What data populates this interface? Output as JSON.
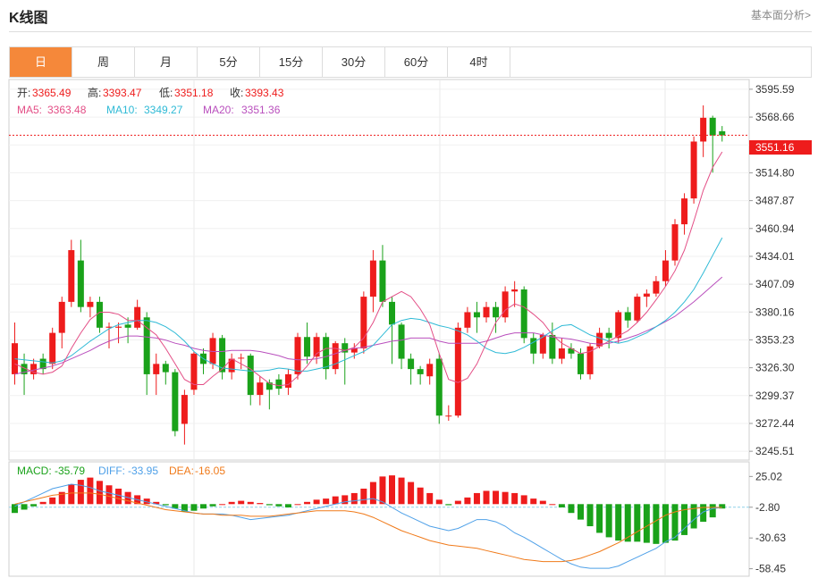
{
  "header": {
    "title": "K线图",
    "link": "基本面分析>"
  },
  "tabs": [
    "日",
    "周",
    "月",
    "5分",
    "15分",
    "30分",
    "60分",
    "4时"
  ],
  "active_tab": 0,
  "colors": {
    "up": "#ee1c1c",
    "down": "#1aa21a",
    "ma5": "#e34e86",
    "ma10": "#2fbad6",
    "ma20": "#b94fbd",
    "diff": "#4ea0e8",
    "dea": "#f07a1a",
    "accent": "#f5883a"
  },
  "info": {
    "open_label": "开:",
    "open": "3365.49",
    "high_label": "高:",
    "high": "3393.47",
    "low_label": "低:",
    "low": "3351.18",
    "close_label": "收:",
    "close": "3393.43",
    "ma5_label": "MA5:",
    "ma5": "3363.48",
    "ma10_label": "MA10:",
    "ma10": "3349.27",
    "ma20_label": "MA20:",
    "ma20": "3351.36"
  },
  "macd_info": {
    "macd_label": "MACD:",
    "macd": "-35.79",
    "diff_label": "DIFF:",
    "diff": "-33.95",
    "dea_label": "DEA:",
    "dea": "-16.05"
  },
  "chart_data": {
    "type": "candlestick",
    "price_axis": {
      "ticks": [
        "3595.59",
        "3568.66",
        "3541.73",
        "3514.80",
        "3487.87",
        "3460.94",
        "3434.01",
        "3407.09",
        "3380.16",
        "3353.23",
        "3326.30",
        "3299.37",
        "3272.44",
        "3245.51"
      ],
      "range": [
        3237,
        3605
      ]
    },
    "current_price": "3551.16",
    "candles": [
      [
        3320,
        3350,
        3310,
        3370
      ],
      [
        3330,
        3320,
        3300,
        3340
      ],
      [
        3320,
        3330,
        3315,
        3335
      ],
      [
        3335,
        3325,
        3320,
        3340
      ],
      [
        3330,
        3360,
        3325,
        3365
      ],
      [
        3360,
        3390,
        3345,
        3395
      ],
      [
        3390,
        3440,
        3385,
        3450
      ],
      [
        3430,
        3385,
        3380,
        3450
      ],
      [
        3385,
        3390,
        3375,
        3395
      ],
      [
        3390,
        3365,
        3360,
        3395
      ],
      [
        3365,
        3366,
        3345,
        3370
      ],
      [
        3365,
        3366,
        3350,
        3370
      ],
      [
        3368,
        3365,
        3350,
        3375
      ],
      [
        3365,
        3385,
        3363,
        3392
      ],
      [
        3375,
        3320,
        3300,
        3380
      ],
      [
        3320,
        3330,
        3300,
        3340
      ],
      [
        3330,
        3322,
        3310,
        3333
      ],
      [
        3322,
        3265,
        3260,
        3325
      ],
      [
        3272,
        3300,
        3252,
        3305
      ],
      [
        3305,
        3340,
        3300,
        3342
      ],
      [
        3340,
        3330,
        3320,
        3345
      ],
      [
        3330,
        3355,
        3325,
        3360
      ],
      [
        3355,
        3322,
        3315,
        3358
      ],
      [
        3322,
        3335,
        3315,
        3340
      ],
      [
        3336,
        3336,
        3325,
        3340
      ],
      [
        3338,
        3300,
        3290,
        3340
      ],
      [
        3300,
        3312,
        3290,
        3318
      ],
      [
        3312,
        3305,
        3286,
        3315
      ],
      [
        3315,
        3306,
        3300,
        3320
      ],
      [
        3307,
        3320,
        3300,
        3325
      ],
      [
        3320,
        3356,
        3315,
        3360
      ],
      [
        3356,
        3337,
        3330,
        3370
      ],
      [
        3337,
        3356,
        3330,
        3360
      ],
      [
        3356,
        3325,
        3315,
        3360
      ],
      [
        3325,
        3350,
        3320,
        3352
      ],
      [
        3350,
        3341,
        3310,
        3355
      ],
      [
        3341,
        3345,
        3335,
        3350
      ],
      [
        3345,
        3395,
        3340,
        3400
      ],
      [
        3395,
        3430,
        3380,
        3440
      ],
      [
        3430,
        3390,
        3385,
        3445
      ],
      [
        3390,
        3368,
        3330,
        3395
      ],
      [
        3368,
        3335,
        3325,
        3370
      ],
      [
        3335,
        3325,
        3310,
        3340
      ],
      [
        3325,
        3320,
        3310,
        3328
      ],
      [
        3318,
        3330,
        3310,
        3335
      ],
      [
        3335,
        3280,
        3272,
        3340
      ],
      [
        3280,
        3280,
        3275,
        3290
      ],
      [
        3280,
        3365,
        3278,
        3370
      ],
      [
        3365,
        3380,
        3360,
        3385
      ],
      [
        3380,
        3375,
        3360,
        3390
      ],
      [
        3375,
        3385,
        3370,
        3390
      ],
      [
        3385,
        3375,
        3360,
        3390
      ],
      [
        3375,
        3400,
        3370,
        3405
      ],
      [
        3400,
        3402,
        3385,
        3410
      ],
      [
        3402,
        3355,
        3350,
        3405
      ],
      [
        3355,
        3340,
        3330,
        3360
      ],
      [
        3340,
        3358,
        3335,
        3360
      ],
      [
        3358,
        3335,
        3330,
        3370
      ],
      [
        3335,
        3345,
        3330,
        3355
      ],
      [
        3345,
        3340,
        3335,
        3350
      ],
      [
        3340,
        3320,
        3315,
        3345
      ],
      [
        3320,
        3347,
        3315,
        3350
      ],
      [
        3347,
        3360,
        3345,
        3365
      ],
      [
        3360,
        3355,
        3345,
        3365
      ],
      [
        3355,
        3380,
        3350,
        3382
      ],
      [
        3380,
        3372,
        3365,
        3385
      ],
      [
        3372,
        3395,
        3370,
        3398
      ],
      [
        3395,
        3398,
        3385,
        3402
      ],
      [
        3398,
        3410,
        3395,
        3415
      ],
      [
        3410,
        3430,
        3405,
        3440
      ],
      [
        3430,
        3465,
        3425,
        3470
      ],
      [
        3465,
        3490,
        3455,
        3495
      ],
      [
        3490,
        3545,
        3485,
        3550
      ],
      [
        3545,
        3568,
        3530,
        3580
      ],
      [
        3568,
        3551,
        3515,
        3570
      ],
      [
        3555,
        3551,
        3545,
        3560
      ]
    ],
    "ma5": [
      3330,
      3326,
      3322,
      3320,
      3322,
      3328,
      3345,
      3360,
      3373,
      3380,
      3380,
      3378,
      3372,
      3372,
      3365,
      3358,
      3345,
      3330,
      3315,
      3310,
      3310,
      3318,
      3325,
      3335,
      3330,
      3325,
      3318,
      3311,
      3309,
      3310,
      3318,
      3328,
      3340,
      3345,
      3345,
      3343,
      3346,
      3355,
      3370,
      3390,
      3395,
      3400,
      3395,
      3383,
      3368,
      3340,
      3315,
      3312,
      3316,
      3330,
      3350,
      3370,
      3382,
      3388,
      3385,
      3378,
      3370,
      3358,
      3350,
      3345,
      3340,
      3342,
      3347,
      3352,
      3357,
      3362,
      3370,
      3380,
      3392,
      3405,
      3420,
      3440,
      3468,
      3498,
      3520,
      3535
    ],
    "ma10": [
      3335,
      3334,
      3333,
      3332,
      3331,
      3333,
      3338,
      3345,
      3352,
      3358,
      3364,
      3368,
      3370,
      3372,
      3372,
      3370,
      3366,
      3360,
      3352,
      3342,
      3335,
      3330,
      3326,
      3325,
      3324,
      3323,
      3323,
      3324,
      3326,
      3325,
      3323,
      3323,
      3325,
      3327,
      3330,
      3334,
      3338,
      3342,
      3348,
      3358,
      3368,
      3372,
      3374,
      3373,
      3370,
      3367,
      3365,
      3362,
      3358,
      3352,
      3345,
      3341,
      3340,
      3342,
      3346,
      3351,
      3356,
      3362,
      3367,
      3368,
      3363,
      3358,
      3355,
      3352,
      3350,
      3352,
      3356,
      3360,
      3366,
      3372,
      3380,
      3390,
      3402,
      3418,
      3435,
      3452
    ],
    "ma20": [
      3320,
      3322,
      3324,
      3326,
      3328,
      3331,
      3335,
      3339,
      3343,
      3348,
      3352,
      3355,
      3357,
      3357,
      3356,
      3355,
      3353,
      3350,
      3348,
      3345,
      3343,
      3342,
      3342,
      3343,
      3343,
      3343,
      3342,
      3340,
      3338,
      3335,
      3334,
      3334,
      3335,
      3337,
      3340,
      3343,
      3345,
      3346,
      3348,
      3350,
      3352,
      3353,
      3355,
      3355,
      3355,
      3352,
      3350,
      3350,
      3350,
      3350,
      3352,
      3355,
      3358,
      3360,
      3360,
      3360,
      3358,
      3356,
      3355,
      3354,
      3352,
      3350,
      3349,
      3350,
      3352,
      3355,
      3358,
      3362,
      3366,
      3371,
      3376,
      3383,
      3390,
      3398,
      3406,
      3414
    ],
    "macd_axis": {
      "ticks": [
        "25.02",
        "-2.80",
        "-30.63",
        "-58.45"
      ],
      "range": [
        -62,
        35
      ]
    },
    "macd": [
      -8,
      -5,
      -2,
      2,
      6,
      11,
      18,
      22,
      24,
      21,
      17,
      14,
      11,
      8,
      5,
      2,
      -1,
      -4,
      -7,
      -6,
      -4,
      -2,
      0,
      2,
      3,
      2,
      1,
      -1,
      -2,
      -3,
      0,
      2,
      4,
      5,
      7,
      8,
      10,
      14,
      20,
      25,
      26,
      24,
      20,
      15,
      10,
      4,
      -1,
      3,
      6,
      10,
      12,
      12,
      11,
      10,
      8,
      5,
      3,
      0,
      -3,
      -8,
      -14,
      -20,
      -26,
      -30,
      -33,
      -34,
      -34,
      -35,
      -36,
      -35,
      -33,
      -28,
      -22,
      -16,
      -12,
      -4
    ],
    "diff": [
      -2,
      2,
      6,
      10,
      14,
      16,
      18,
      17,
      15,
      12,
      10,
      8,
      6,
      4,
      2,
      0,
      -2,
      -4,
      -6,
      -8,
      -9,
      -9,
      -9,
      -10,
      -12,
      -14,
      -13,
      -12,
      -11,
      -10,
      -8,
      -6,
      -4,
      -2,
      0,
      2,
      3,
      4,
      5,
      2,
      -3,
      -8,
      -12,
      -16,
      -20,
      -22,
      -24,
      -22,
      -18,
      -14,
      -14,
      -16,
      -20,
      -26,
      -30,
      -35,
      -40,
      -45,
      -50,
      -54,
      -57,
      -58,
      -58,
      -58,
      -56,
      -52,
      -48,
      -44,
      -40,
      -34,
      -30,
      -22,
      -14,
      -7,
      -4,
      -3
    ],
    "dea": [
      0,
      2,
      4,
      6,
      8,
      9,
      10,
      10,
      10,
      9,
      7,
      5,
      3,
      1,
      -1,
      -3,
      -5,
      -6,
      -7,
      -8,
      -9,
      -9,
      -10,
      -10,
      -10,
      -11,
      -11,
      -11,
      -10,
      -9,
      -8,
      -7,
      -6,
      -6,
      -6,
      -6,
      -7,
      -9,
      -12,
      -16,
      -20,
      -24,
      -27,
      -30,
      -33,
      -35,
      -37,
      -38,
      -39,
      -40,
      -42,
      -44,
      -46,
      -48,
      -50,
      -51,
      -52,
      -52,
      -52,
      -51,
      -49,
      -46,
      -43,
      -39,
      -35,
      -30,
      -25,
      -20,
      -15,
      -10,
      -7,
      -5,
      -4,
      -3,
      -3,
      -3
    ]
  }
}
